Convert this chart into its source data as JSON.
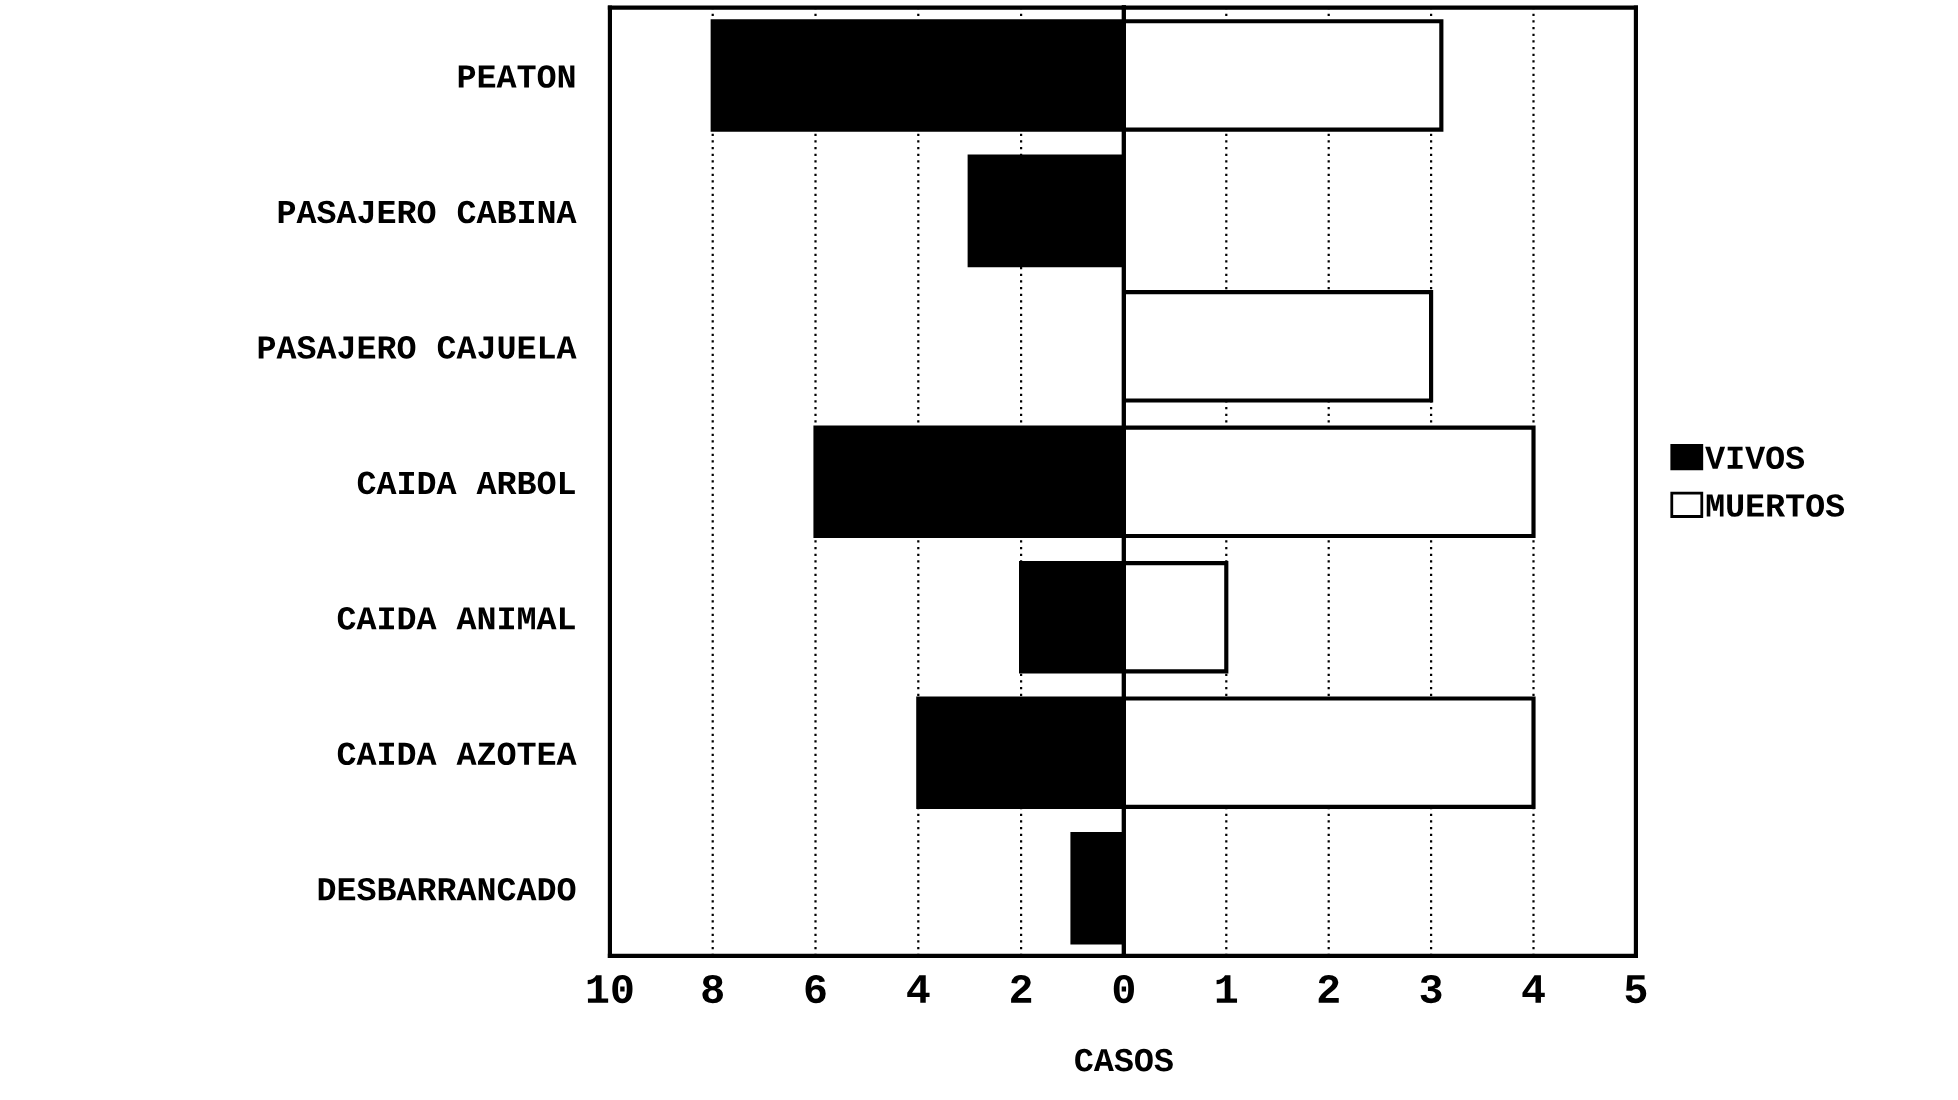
{
  "chart_data": [
    {
      "type": "bar",
      "orientation": "horizontal",
      "categories": [
        "PEATON",
        "PASAJERO CABINA",
        "PASAJERO CAJUELA",
        "CAIDA ARBOL",
        "CAIDA ANIMAL",
        "CAIDA AZOTEA",
        "DESBARRANCADO"
      ],
      "series": [
        {
          "name": "VIVOS",
          "color": "#000000",
          "values": [
            8,
            3,
            null,
            6,
            2,
            4,
            1
          ]
        }
      ],
      "xlim": [
        10,
        0
      ],
      "xticks": [
        10,
        8,
        6,
        4,
        2,
        0
      ],
      "grid": "x",
      "legend": "right"
    },
    {
      "type": "bar",
      "orientation": "horizontal",
      "series": [
        {
          "name": "MUERTOS",
          "color": "#ffffff",
          "values": [
            3.1,
            null,
            3,
            4,
            1,
            4,
            null
          ]
        }
      ],
      "xlim": [
        0,
        5
      ],
      "xticks": [
        {
          "value": 0,
          "label": null
        },
        1,
        2,
        3,
        4,
        5
      ],
      "grid": "x",
      "legend": "right",
      "xlabel": "CASOS"
    }
  ]
}
